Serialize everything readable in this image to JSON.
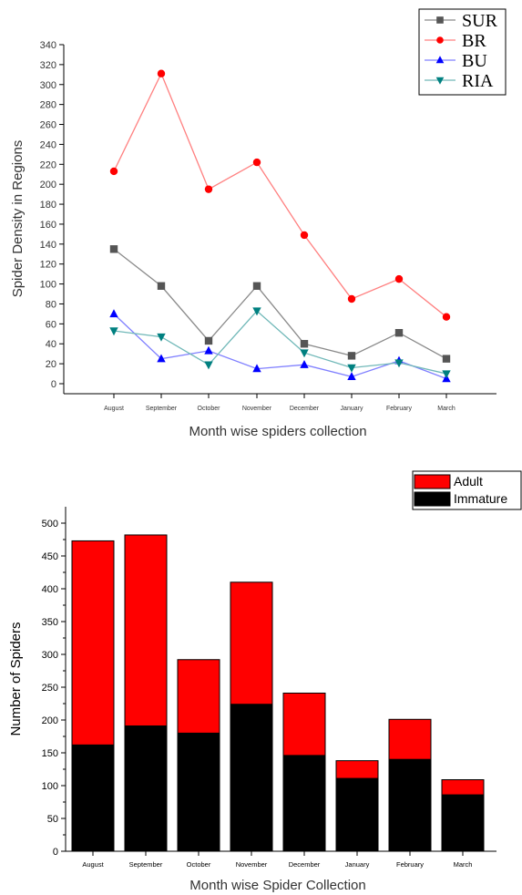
{
  "chart_data": [
    {
      "type": "line",
      "title": "",
      "xlabel": "Month wise spiders collection",
      "ylabel": "Spider Density in Regions",
      "ylim": [
        0,
        340
      ],
      "yticks": [
        0,
        20,
        40,
        60,
        80,
        100,
        120,
        140,
        160,
        180,
        200,
        220,
        240,
        260,
        280,
        300,
        320,
        340
      ],
      "categories": [
        "August",
        "September",
        "October",
        "November",
        "December",
        "January",
        "February",
        "March"
      ],
      "legend_position": "top-right",
      "series": [
        {
          "name": "SUR",
          "color": "#555555",
          "marker": "square",
          "values": [
            135,
            98,
            43,
            98,
            40,
            28,
            51,
            25
          ]
        },
        {
          "name": "BR",
          "color": "#ff0000",
          "marker": "circle",
          "values": [
            213,
            311,
            195,
            222,
            149,
            85,
            105,
            67
          ]
        },
        {
          "name": "BU",
          "color": "#0000ff",
          "marker": "triangle-up",
          "values": [
            70,
            25,
            33,
            15,
            19,
            7,
            23,
            5
          ]
        },
        {
          "name": "RIA",
          "color": "#008080",
          "marker": "triangle-down",
          "values": [
            53,
            47,
            19,
            73,
            31,
            16,
            21,
            10
          ]
        }
      ]
    },
    {
      "type": "bar",
      "stacked": true,
      "title": "",
      "xlabel": "Month wise Spider Collection",
      "ylabel": "Number of Spiders",
      "ylim": [
        0,
        500
      ],
      "yticks": [
        0,
        50,
        100,
        150,
        200,
        250,
        300,
        350,
        400,
        450,
        500
      ],
      "categories": [
        "August",
        "September",
        "October",
        "November",
        "December",
        "January",
        "February",
        "March"
      ],
      "legend_position": "top-right",
      "series": [
        {
          "name": "Immature",
          "color": "#000000",
          "values": [
            162,
            191,
            180,
            224,
            146,
            111,
            140,
            86
          ]
        },
        {
          "name": "Adult",
          "color": "#ff0000",
          "values": [
            311,
            291,
            112,
            186,
            95,
            27,
            61,
            23
          ]
        }
      ]
    }
  ]
}
